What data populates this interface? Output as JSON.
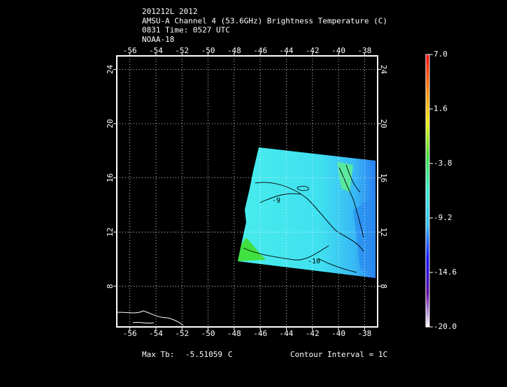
{
  "chart_data": {
    "type": "map",
    "title_lines": [
      "201212L 2012",
      "AMSU-A Channel 4 (53.6GHz) Brightness Temperature (C)",
      "0831 Time: 0527 UTC",
      "NOAA-18"
    ],
    "xlim": [
      -57,
      -37
    ],
    "ylim": [
      5,
      25
    ],
    "xticks": [
      -56,
      -54,
      -52,
      -50,
      -48,
      -46,
      -44,
      -42,
      -40,
      -38
    ],
    "yticks": [
      8,
      12,
      16,
      20,
      24
    ],
    "grid": true,
    "colorbar": {
      "lim": [
        -20,
        7
      ],
      "ticks": [
        {
          "value": 7,
          "label": "7.0"
        },
        1.6,
        -3.8,
        -9.2,
        -14.6,
        {
          "value": -20,
          "label": "-20.0"
        }
      ],
      "colors": [
        "#ffffff",
        "#5a00a0",
        "#1010ff",
        "#30c0ff",
        "#30f0d0",
        "#40e040",
        "#f0f000",
        "#ff8000",
        "#ff0000"
      ]
    },
    "contour_labels": [
      "-9",
      "-10"
    ],
    "max_tb_label": "Max Tb:",
    "max_tb": -5.51059,
    "max_tb_unit": "C",
    "contour_interval_text": "Contour Interval = 1C"
  }
}
